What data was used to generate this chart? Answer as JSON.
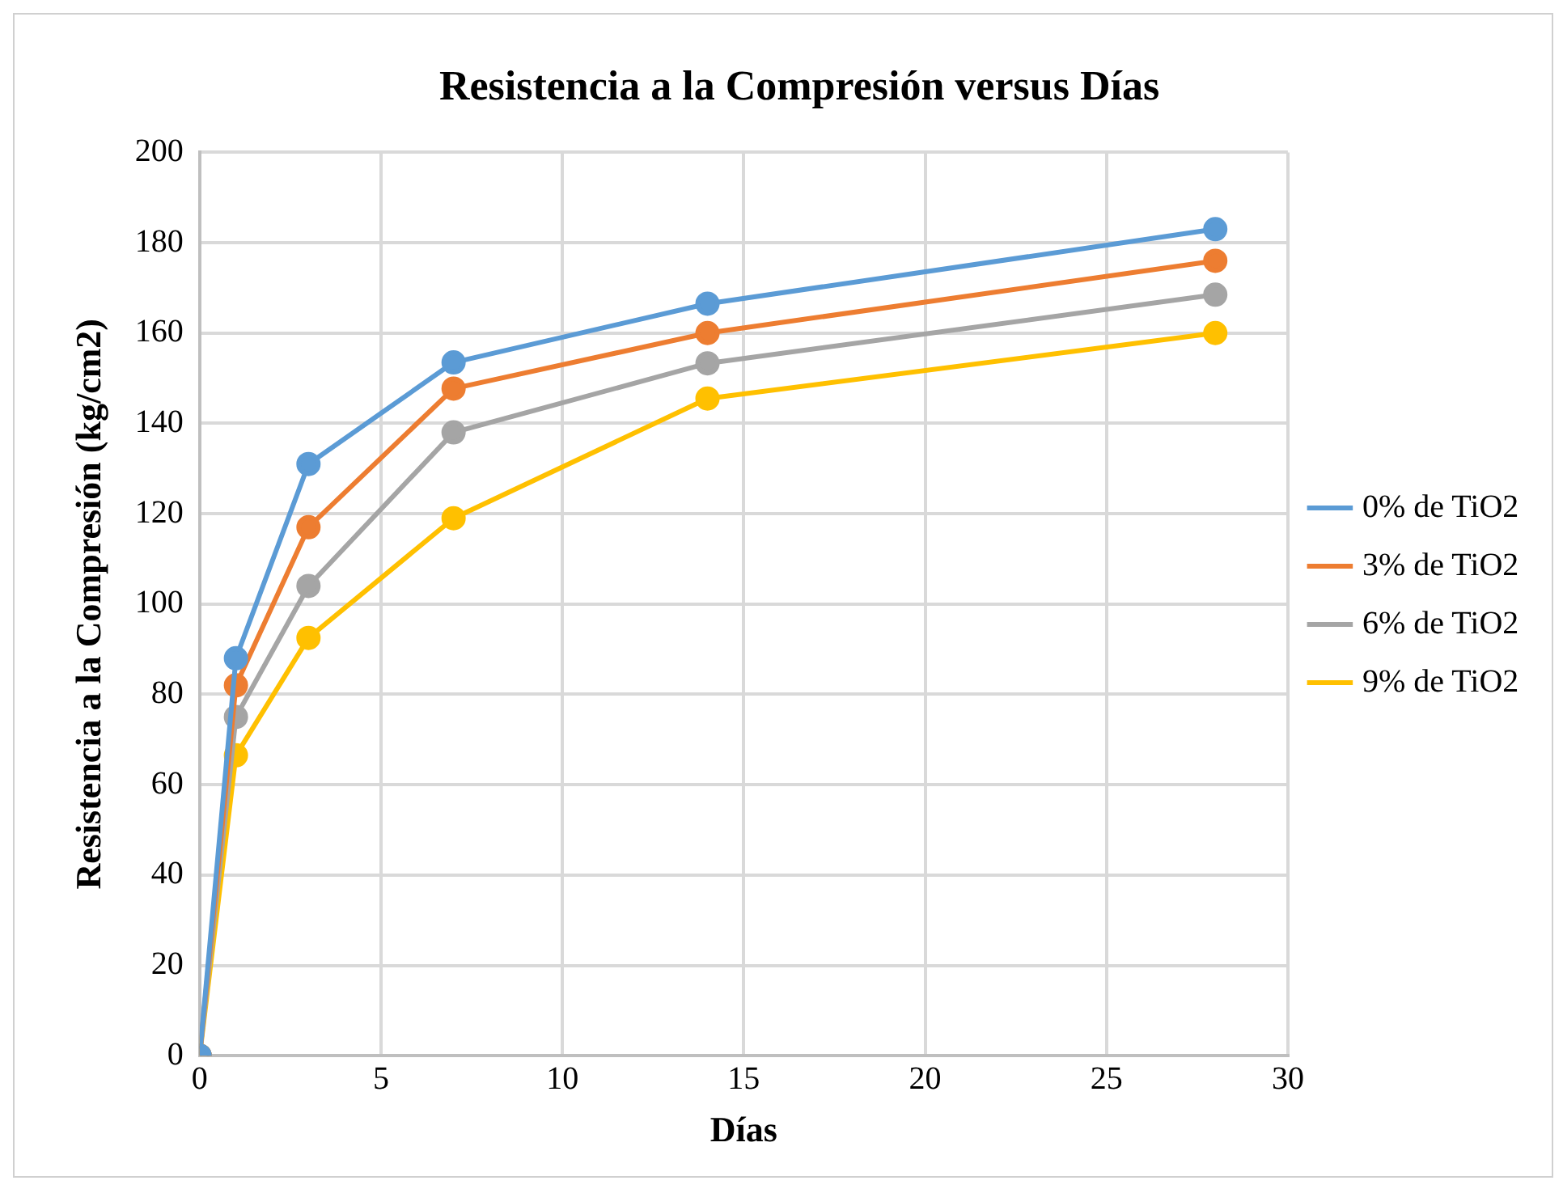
{
  "chart_data": {
    "type": "line",
    "title": "Resistencia a la Compresión versus Días",
    "xlabel": "Días",
    "ylabel": "Resistencia a la Compresión (kg/cm2)",
    "x": [
      0,
      1,
      3,
      7,
      14,
      28
    ],
    "series": [
      {
        "name": "0% de TiO2",
        "color": "#5b9bd5",
        "values": [
          0,
          88,
          131,
          153.5,
          166.5,
          183
        ]
      },
      {
        "name": "3% de TiO2",
        "color": "#ed7d31",
        "values": [
          0,
          82,
          117,
          147.7,
          160,
          176
        ]
      },
      {
        "name": "6% de TiO2",
        "color": "#a5a5a5",
        "values": [
          0,
          75,
          104,
          138,
          153.3,
          168.5
        ]
      },
      {
        "name": "9% de TiO2",
        "color": "#ffc000",
        "values": [
          0,
          66.5,
          92.5,
          119,
          145.5,
          160
        ]
      }
    ],
    "xlim": [
      0,
      30
    ],
    "xticks": [
      0,
      5,
      10,
      15,
      20,
      25,
      30
    ],
    "ylim": [
      0,
      200
    ],
    "yticks": [
      0,
      20,
      40,
      60,
      80,
      100,
      120,
      140,
      160,
      180,
      200
    ],
    "grid": true,
    "legend": "right",
    "marker": "circle",
    "line_style": "solid"
  }
}
